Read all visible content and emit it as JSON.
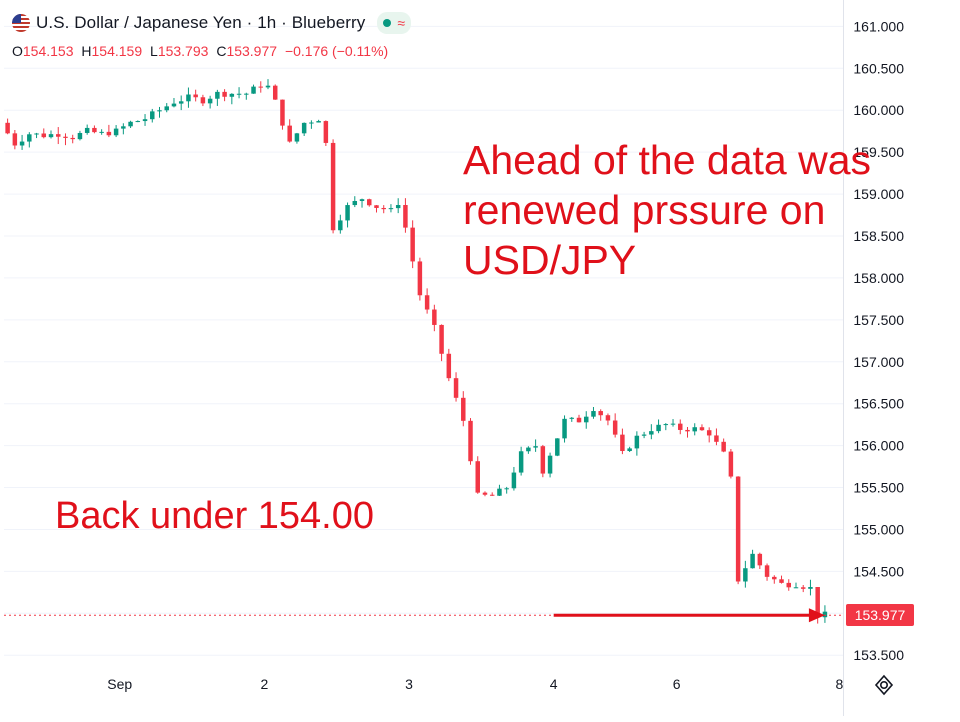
{
  "header": {
    "title": "U.S. Dollar / Japanese Yen · 1h · Blueberry",
    "status_icon": "market-open-dot-icon",
    "status_wave": "≈"
  },
  "ohlc": {
    "open_label": "O",
    "open": "154.153",
    "high_label": "H",
    "high": "154.159",
    "low_label": "L",
    "low": "153.793",
    "close_label": "C",
    "close": "153.977",
    "change": "−0.176 (−0.11%)"
  },
  "annotations": {
    "note1": "Ahead of the data was renewed prssure on USD/JPY",
    "note2": "Back under 154.00"
  },
  "last_price_label": "153.977",
  "colors": {
    "up": "#089981",
    "down": "#f23645",
    "annotation": "#e0101a",
    "axis_text": "#131722"
  },
  "chart_data": {
    "type": "candlestick",
    "symbol": "USD/JPY",
    "timeframe": "1h",
    "ylim": [
      153.3,
      161.1
    ],
    "yticks": [
      153.5,
      154.0,
      154.5,
      155.0,
      155.5,
      156.0,
      156.5,
      157.0,
      157.5,
      158.0,
      158.5,
      159.0,
      159.5,
      160.0,
      160.5,
      161.0
    ],
    "ytick_labels": [
      "153.500",
      "154.000",
      "154.500",
      "155.000",
      "155.500",
      "156.000",
      "156.500",
      "157.000",
      "157.500",
      "158.000",
      "158.500",
      "159.000",
      "159.500",
      "160.000",
      "160.500",
      "161.000"
    ],
    "xlim": [
      -0.5,
      115.5
    ],
    "xticks": [
      {
        "label": "Sep",
        "index": 15.5
      },
      {
        "label": "2",
        "index": 35.5
      },
      {
        "label": "3",
        "index": 55.5
      },
      {
        "label": "4",
        "index": 75.5
      },
      {
        "label": "6",
        "index": 92.5
      },
      {
        "label": "8",
        "index": 115
      }
    ],
    "last_price": 153.977,
    "arrow": {
      "from_index": 75.5,
      "to_index": 113,
      "price": 153.977
    },
    "path": [
      [
        0,
        159.85
      ],
      [
        2,
        159.6
      ],
      [
        4,
        159.72
      ],
      [
        6,
        159.7
      ],
      [
        8,
        159.72
      ],
      [
        10,
        159.68
      ],
      [
        12,
        159.75
      ],
      [
        14,
        159.72
      ],
      [
        16,
        159.75
      ],
      [
        18,
        159.85
      ],
      [
        20,
        159.9
      ],
      [
        22,
        160.0
      ],
      [
        24,
        160.1
      ],
      [
        26,
        160.15
      ],
      [
        28,
        160.12
      ],
      [
        30,
        160.2
      ],
      [
        32,
        160.2
      ],
      [
        34,
        160.2
      ],
      [
        36,
        160.3
      ],
      [
        37,
        160.28
      ],
      [
        38,
        160.1
      ],
      [
        40,
        159.6
      ],
      [
        42,
        159.85
      ],
      [
        44,
        159.9
      ],
      [
        45,
        159.6
      ],
      [
        46,
        158.6
      ],
      [
        48,
        158.85
      ],
      [
        50,
        158.95
      ],
      [
        52,
        158.85
      ],
      [
        54,
        158.8
      ],
      [
        55,
        158.9
      ],
      [
        56,
        158.6
      ],
      [
        58,
        157.8
      ],
      [
        60,
        157.4
      ],
      [
        62,
        156.8
      ],
      [
        64,
        156.3
      ],
      [
        66,
        155.4
      ],
      [
        68,
        155.4
      ],
      [
        70,
        155.5
      ],
      [
        72,
        155.9
      ],
      [
        74,
        156.0
      ],
      [
        75,
        155.7
      ],
      [
        76,
        155.9
      ],
      [
        78,
        156.3
      ],
      [
        80,
        156.3
      ],
      [
        82,
        156.45
      ],
      [
        84,
        156.3
      ],
      [
        85,
        156.1
      ],
      [
        86,
        155.9
      ],
      [
        88,
        156.1
      ],
      [
        90,
        156.2
      ],
      [
        92,
        156.25
      ],
      [
        94,
        156.2
      ],
      [
        96,
        156.2
      ],
      [
        98,
        156.15
      ],
      [
        100,
        155.9
      ],
      [
        101,
        155.6
      ],
      [
        102,
        154.4
      ],
      [
        104,
        154.7
      ],
      [
        106,
        154.45
      ],
      [
        108,
        154.35
      ],
      [
        110,
        154.35
      ],
      [
        112,
        154.3
      ],
      [
        113,
        153.98
      ]
    ]
  }
}
